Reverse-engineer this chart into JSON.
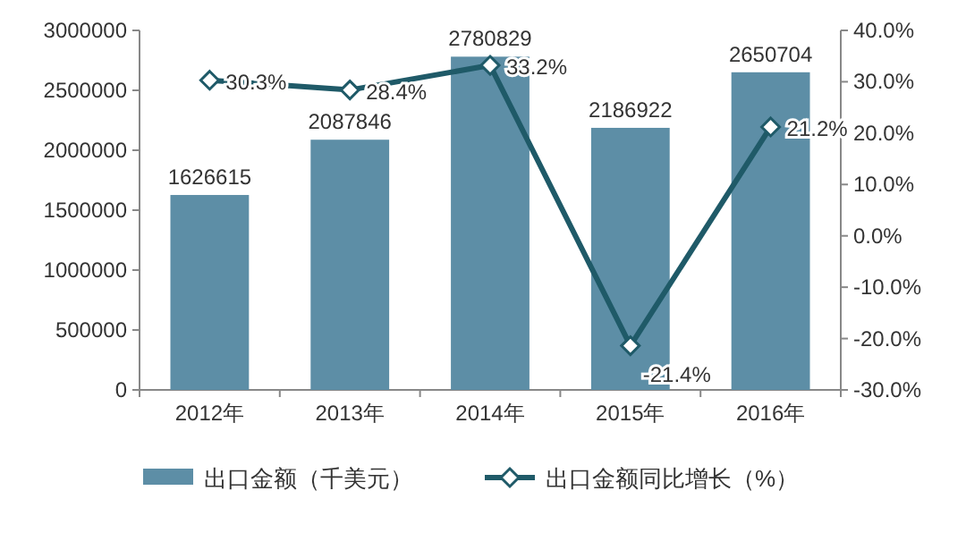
{
  "chart_data": {
    "type": "bar",
    "categories": [
      "2012年",
      "2013年",
      "2014年",
      "2015年",
      "2016年"
    ],
    "series": [
      {
        "name": "出口金额（千美元）",
        "color": "#5d8ea6",
        "values": [
          1626615,
          2087846,
          2780829,
          2186922,
          2650704
        ],
        "value_labels": [
          "1626615",
          "2087846",
          "2780829",
          "2186922",
          "2650704"
        ]
      },
      {
        "name": "出口金额同比增长（%）",
        "type": "line",
        "axis": "y2",
        "marker": "diamond",
        "color": "#1f5a68",
        "values": [
          30.3,
          28.4,
          33.2,
          -21.4,
          21.2
        ],
        "value_labels": [
          "30.3%",
          "28.4%",
          "33.2%",
          "-21.4%",
          "21.2%"
        ]
      }
    ],
    "ylim": [
      0,
      3000000
    ],
    "yticks": [
      0,
      500000,
      1000000,
      1500000,
      2000000,
      2500000,
      3000000
    ],
    "y2lim": [
      -30,
      40
    ],
    "y2ticks": [
      {
        "value": -30,
        "label": "-30.0%"
      },
      {
        "value": -20,
        "label": "-20.0%"
      },
      {
        "value": -10,
        "label": "-10.0%"
      },
      {
        "value": 0,
        "label": "0.0%"
      },
      {
        "value": 10,
        "label": "10.0%"
      },
      {
        "value": 20,
        "label": "20.0%"
      },
      {
        "value": 30,
        "label": "30.0%"
      },
      {
        "value": 40,
        "label": "40.0%"
      }
    ],
    "legend": "bottom"
  }
}
